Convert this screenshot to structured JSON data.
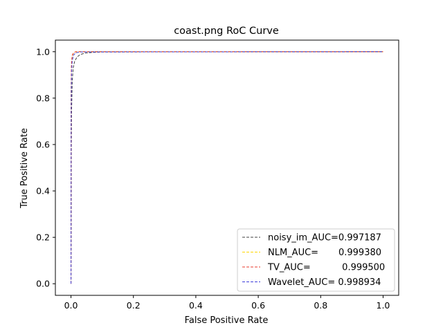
{
  "chart_data": {
    "type": "line",
    "title": "coast.png RoC Curve",
    "xlabel": "False Positive Rate",
    "ylabel": "True Positive Rate",
    "xlim": [
      -0.05,
      1.05
    ],
    "ylim": [
      -0.05,
      1.05
    ],
    "xticks": [
      0.0,
      0.2,
      0.4,
      0.6,
      0.8,
      1.0
    ],
    "xtick_labels": [
      "0.0",
      "0.2",
      "0.4",
      "0.6",
      "0.8",
      "1.0"
    ],
    "yticks": [
      0.0,
      0.2,
      0.4,
      0.6,
      0.8,
      1.0
    ],
    "ytick_labels": [
      "0.0",
      "0.2",
      "0.4",
      "0.6",
      "0.8",
      "1.0"
    ],
    "grid": false,
    "legend_position": "lower-right",
    "series": [
      {
        "name": "noisy_im_AUC=0.997187",
        "color": "#404040",
        "linestyle": "dashed",
        "x": [
          0.0,
          0.001,
          0.002,
          0.004,
          0.007,
          0.012,
          0.02,
          0.03,
          0.045,
          0.07,
          0.1,
          1.0
        ],
        "y": [
          0.0,
          0.55,
          0.75,
          0.87,
          0.93,
          0.96,
          0.978,
          0.988,
          0.994,
          0.997,
          0.999,
          1.0
        ]
      },
      {
        "name": "NLM_AUC=       0.999380",
        "color": "#ffd700",
        "linestyle": "dashed",
        "x": [
          0.0,
          0.0005,
          0.001,
          0.002,
          0.004,
          0.007,
          0.012,
          0.02,
          1.0
        ],
        "y": [
          0.0,
          0.8,
          0.9,
          0.95,
          0.98,
          0.992,
          0.998,
          1.0,
          1.0
        ]
      },
      {
        "name": "TV_AUC=           0.999500",
        "color": "#e8382c",
        "linestyle": "dashed",
        "x": [
          0.0,
          0.0005,
          0.001,
          0.002,
          0.004,
          0.008,
          0.015,
          1.0
        ],
        "y": [
          0.0,
          0.82,
          0.92,
          0.96,
          0.985,
          0.995,
          1.0,
          1.0
        ]
      },
      {
        "name": "Wavelet_AUC= 0.998934",
        "color": "#3d3ddb",
        "linestyle": "dashed",
        "x": [
          0.0,
          0.0005,
          0.001,
          0.002,
          0.004,
          0.008,
          0.015,
          0.03,
          1.0
        ],
        "y": [
          0.0,
          0.7,
          0.85,
          0.92,
          0.96,
          0.985,
          0.995,
          0.999,
          1.0
        ]
      }
    ]
  }
}
